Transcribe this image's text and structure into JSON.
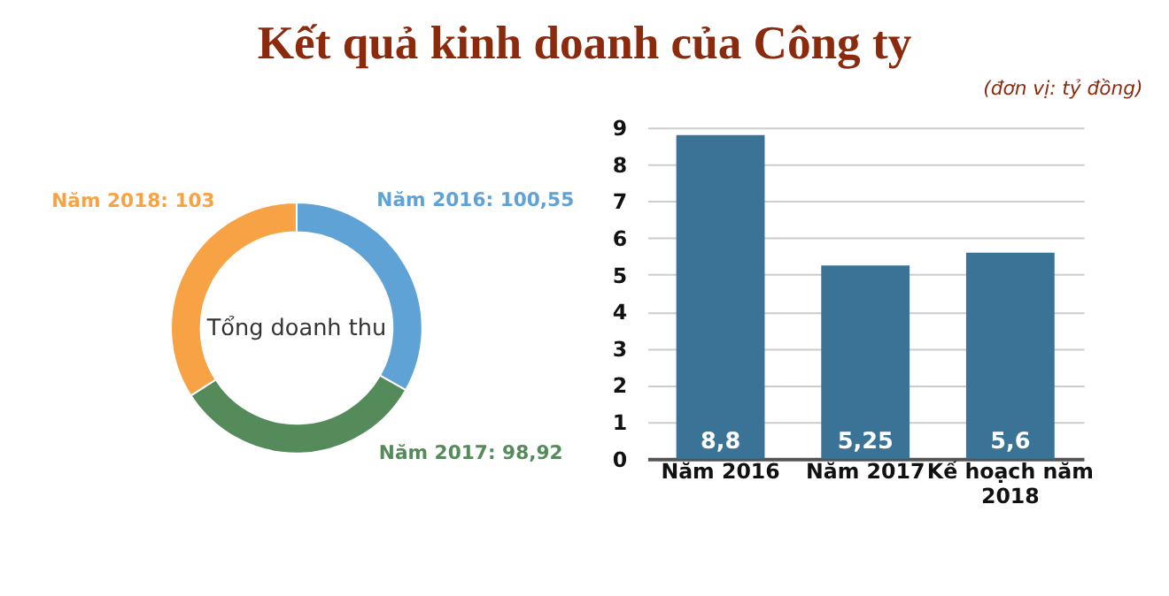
{
  "chart_data": [
    {
      "type": "other",
      "title": "Kết quả kinh doanh của Công ty",
      "annotations": [
        "(đơn vị: tỷ đồng)"
      ]
    },
    {
      "type": "donut",
      "categories": [
        "Năm 2016: 100,55",
        "Năm 2017: 98,92",
        "Năm 2018: 103"
      ],
      "values": [
        100.55,
        98.92,
        103
      ],
      "colors": [
        "#5fa3d6",
        "#558b5a",
        "#f7a345"
      ],
      "annotations": [
        "Tổng doanh thu"
      ]
    },
    {
      "type": "bar",
      "categories": [
        "Năm 2016",
        "Năm 2017",
        "Kế hoạch năm 2018"
      ],
      "values": [
        8.8,
        5.25,
        5.6
      ],
      "value_labels": [
        "8,8",
        "5,25",
        "5,6"
      ],
      "color": "#3a7396",
      "ylim": [
        0,
        9
      ],
      "yticks": [
        0,
        1,
        2,
        3,
        4,
        5,
        6,
        7,
        8,
        9
      ],
      "grid": "y"
    }
  ]
}
